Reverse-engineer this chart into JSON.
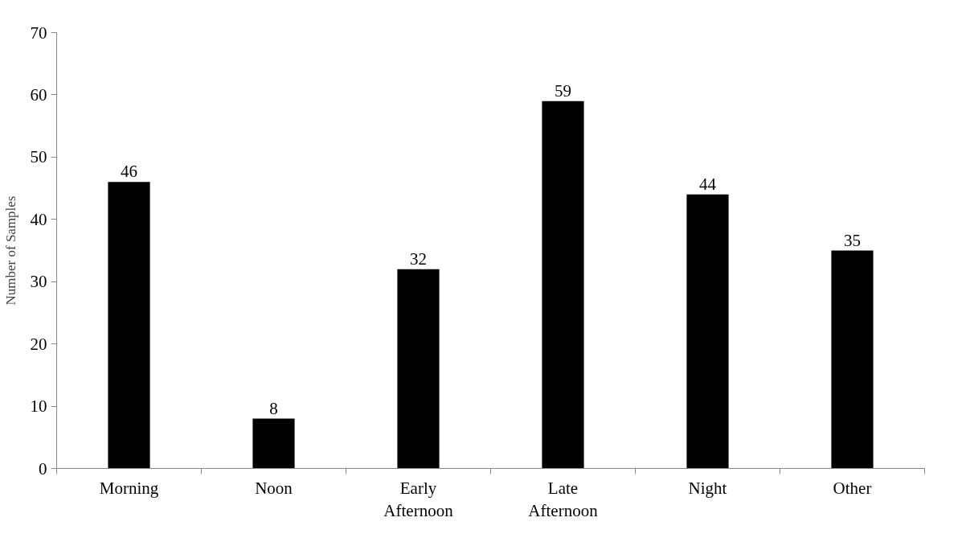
{
  "chart_data": {
    "type": "bar",
    "ylabel": "Number of Samples",
    "categories": [
      "Morning",
      "Noon",
      "Early Afternoon",
      "Late Afternoon",
      "Night",
      "Other"
    ],
    "values": [
      46,
      8,
      32,
      59,
      44,
      35
    ],
    "color": "#000000",
    "ylim": [
      0,
      70
    ],
    "yticks": [
      0,
      10,
      20,
      30,
      40,
      50,
      60,
      70
    ],
    "grid": false,
    "data_labels": true
  }
}
